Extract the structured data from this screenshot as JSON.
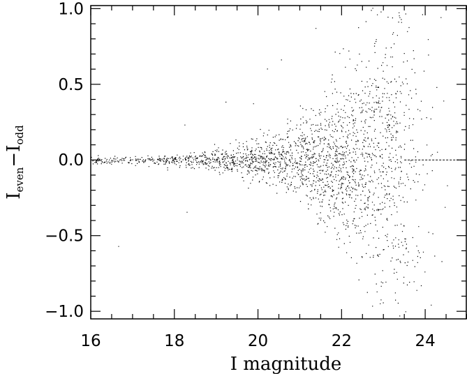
{
  "chart_data": {
    "type": "scatter",
    "title": "",
    "xlabel": "I magnitude",
    "ylabel": {
      "main": "I",
      "sub1": "even",
      "dash": "−",
      "main2": "I",
      "sub2": "odd"
    },
    "xlim": [
      16,
      25
    ],
    "ylim": [
      -1.05,
      1.02
    ],
    "x_ticks": [
      16,
      18,
      20,
      22,
      24
    ],
    "x_tick_labels": [
      "16",
      "18",
      "20",
      "22",
      "24"
    ],
    "y_ticks": [
      -1.0,
      -0.5,
      0.0,
      0.5,
      1.0
    ],
    "y_tick_labels": [
      "−1.0",
      "−0.5",
      "0.0",
      "0.5",
      "1.0"
    ],
    "reference_line": {
      "y": 0.0,
      "x_range": [
        23.5,
        25
      ],
      "style": "dashed"
    },
    "grid": false,
    "legend": "none",
    "point_color": "#000000",
    "scatter_model": {
      "description": "dense point cloud; scatter width grows with magnitude, density peaks near I=22-23 and drops sharply beyond ~23.6",
      "sigma_points": [
        [
          16.0,
          0.01
        ],
        [
          18.0,
          0.02
        ],
        [
          19.0,
          0.035
        ],
        [
          20.0,
          0.06
        ],
        [
          21.0,
          0.12
        ],
        [
          22.0,
          0.26
        ],
        [
          23.0,
          0.45
        ],
        [
          24.0,
          0.7
        ]
      ],
      "density_points": [
        [
          16.0,
          0.12
        ],
        [
          17.0,
          0.16
        ],
        [
          18.0,
          0.22
        ],
        [
          19.0,
          0.32
        ],
        [
          20.0,
          0.5
        ],
        [
          21.0,
          0.8
        ],
        [
          22.0,
          1.0
        ],
        [
          23.0,
          0.95
        ],
        [
          23.5,
          0.65
        ],
        [
          24.0,
          0.12
        ],
        [
          24.5,
          0.03
        ]
      ],
      "x_range": [
        16.0,
        24.6
      ],
      "n_points": 42000
    }
  }
}
